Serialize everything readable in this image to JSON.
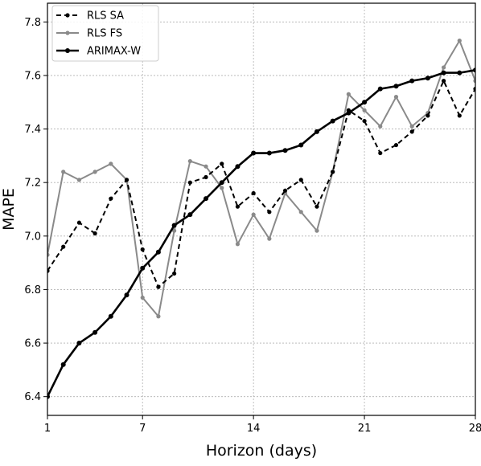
{
  "chart_data": {
    "type": "line",
    "xlabel": "Horizon (days)",
    "ylabel": "MAPE",
    "xlim": [
      1,
      28
    ],
    "ylim": [
      6.33,
      7.87
    ],
    "xticks": [
      1,
      7,
      14,
      21,
      28
    ],
    "xtick_labels": [
      "1",
      "7",
      "14",
      "21",
      "28"
    ],
    "yticks": [
      6.4,
      6.6,
      6.8,
      7.0,
      7.2,
      7.4,
      7.6,
      7.8
    ],
    "ytick_labels": [
      "6.4",
      "6.6",
      "6.8",
      "7.0",
      "7.2",
      "7.4",
      "7.6",
      "7.8"
    ],
    "grid": true,
    "legend_position": "top-left",
    "x": [
      1,
      2,
      3,
      4,
      5,
      6,
      7,
      8,
      9,
      10,
      11,
      12,
      13,
      14,
      15,
      16,
      17,
      18,
      19,
      20,
      21,
      22,
      23,
      24,
      25,
      26,
      27,
      28
    ],
    "series": [
      {
        "name": "RLS SA",
        "color": "#000000",
        "line_style": "dashed",
        "values": [
          6.87,
          6.96,
          7.05,
          7.01,
          7.14,
          7.21,
          6.95,
          6.81,
          6.86,
          7.2,
          7.22,
          7.27,
          7.11,
          7.16,
          7.09,
          7.17,
          7.21,
          7.11,
          7.24,
          7.47,
          7.43,
          7.31,
          7.34,
          7.39,
          7.45,
          7.58,
          7.45,
          7.55
        ]
      },
      {
        "name": "RLS FS",
        "color": "#8a8a8a",
        "line_style": "solid",
        "values": [
          6.93,
          7.24,
          7.21,
          7.24,
          7.27,
          7.21,
          6.77,
          6.7,
          7.02,
          7.28,
          7.26,
          7.18,
          6.97,
          7.08,
          6.99,
          7.16,
          7.09,
          7.02,
          7.24,
          7.53,
          7.47,
          7.41,
          7.52,
          7.41,
          7.46,
          7.63,
          7.73,
          7.58
        ]
      },
      {
        "name": "ARIMAX-W",
        "color": "#000000",
        "line_style": "solid",
        "values": [
          6.4,
          6.52,
          6.6,
          6.64,
          6.7,
          6.78,
          6.88,
          6.94,
          7.04,
          7.08,
          7.14,
          7.2,
          7.26,
          7.31,
          7.31,
          7.32,
          7.34,
          7.39,
          7.43,
          7.46,
          7.5,
          7.55,
          7.56,
          7.58,
          7.59,
          7.61,
          7.61,
          7.62
        ]
      }
    ]
  }
}
